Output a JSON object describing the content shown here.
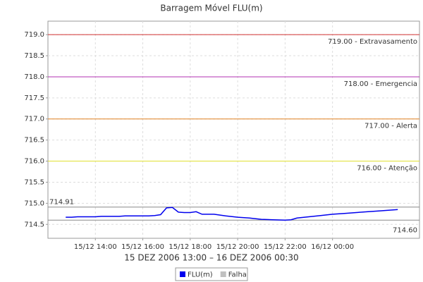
{
  "chart_data": {
    "type": "line",
    "title": "Barragem Móvel FLU(m)",
    "x_label": "15 DEZ 2006 13:00 – 16 DEZ 2006 00:30",
    "x": [
      "2006-12-15T12:45",
      "2006-12-15T13:00",
      "2006-12-15T13:15",
      "2006-12-15T13:30",
      "2006-12-15T13:45",
      "2006-12-15T14:00",
      "2006-12-15T14:15",
      "2006-12-15T14:30",
      "2006-12-15T14:45",
      "2006-12-15T15:00",
      "2006-12-15T15:15",
      "2006-12-15T15:30",
      "2006-12-15T15:45",
      "2006-12-15T16:00",
      "2006-12-15T16:15",
      "2006-12-15T16:30",
      "2006-12-15T16:45",
      "2006-12-15T17:00",
      "2006-12-15T17:15",
      "2006-12-15T17:30",
      "2006-12-15T17:45",
      "2006-12-15T18:00",
      "2006-12-15T18:15",
      "2006-12-15T18:30",
      "2006-12-15T19:00",
      "2006-12-15T19:30",
      "2006-12-15T20:00",
      "2006-12-15T20:30",
      "2006-12-15T21:00",
      "2006-12-15T21:30",
      "2006-12-15T22:00",
      "2006-12-15T22:15",
      "2006-12-15T22:30",
      "2006-12-15T23:00",
      "2006-12-15T23:30",
      "2006-12-16T00:00",
      "2006-12-16T00:30",
      "2006-12-16T01:00",
      "2006-12-16T01:30",
      "2006-12-16T02:00",
      "2006-12-16T02:30",
      "2006-12-16T02:45"
    ],
    "series": [
      {
        "name": "FLU(m)",
        "color": "#0000ee",
        "values": [
          714.67,
          714.67,
          714.68,
          714.68,
          714.68,
          714.68,
          714.69,
          714.69,
          714.69,
          714.69,
          714.7,
          714.7,
          714.7,
          714.7,
          714.7,
          714.71,
          714.73,
          714.89,
          714.9,
          714.79,
          714.78,
          714.78,
          714.8,
          714.74,
          714.74,
          714.7,
          714.67,
          714.65,
          714.62,
          714.61,
          714.6,
          714.61,
          714.65,
          714.68,
          714.71,
          714.74,
          714.76,
          714.78,
          714.8,
          714.82,
          714.84,
          714.85
        ]
      },
      {
        "name": "Falha",
        "color": "#c0c0c0",
        "values": [
          null,
          null,
          null,
          null,
          null,
          null,
          null,
          null,
          null,
          null,
          null,
          null,
          null,
          null,
          null,
          null,
          null,
          null,
          null,
          null,
          null,
          null,
          null,
          null,
          null,
          null,
          null,
          null,
          null,
          null,
          null,
          null,
          null,
          null,
          null,
          null,
          null,
          null,
          null,
          null,
          null,
          null
        ]
      }
    ],
    "xlim": [
      "2006-12-15T12:00",
      "2006-12-16T03:40"
    ],
    "xticks": [
      {
        "value": "2006-12-15T14:00",
        "label": "15/12 14:00"
      },
      {
        "value": "2006-12-15T16:00",
        "label": "15/12 16:00"
      },
      {
        "value": "2006-12-15T18:00",
        "label": "15/12 18:00"
      },
      {
        "value": "2006-12-15T20:00",
        "label": "15/12 20:00"
      },
      {
        "value": "2006-12-15T22:00",
        "label": "15/12 22:00"
      },
      {
        "value": "2006-12-16T00:00",
        "label": "16/12 00:00"
      }
    ],
    "ylim": [
      714.17,
      719.32
    ],
    "yticks": [
      {
        "value": 714.5,
        "label": "714.5"
      },
      {
        "value": 715,
        "label": "715.0"
      },
      {
        "value": 715.5,
        "label": "715.5"
      },
      {
        "value": 716,
        "label": "716.0"
      },
      {
        "value": 716.5,
        "label": "716.5"
      },
      {
        "value": 717,
        "label": "717.0"
      },
      {
        "value": 717.5,
        "label": "717.5"
      },
      {
        "value": 718,
        "label": "718.0"
      },
      {
        "value": 718.5,
        "label": "718.5"
      },
      {
        "value": 719,
        "label": "719.0"
      }
    ],
    "grid": true,
    "thresholds": [
      {
        "value": 719,
        "label": "719.00 - Extravasamento",
        "color": "#d03030"
      },
      {
        "value": 718,
        "label": "718.00 - Emergencia",
        "color": "#b030b0"
      },
      {
        "value": 717,
        "label": "717.00 - Alerta",
        "color": "#e08020"
      },
      {
        "value": 716,
        "label": "716.00 - Atenção",
        "color": "#e0e030"
      }
    ],
    "markers": [
      {
        "value": 714.91,
        "label": "714.91",
        "position": "left"
      },
      {
        "value": 714.6,
        "label": "714.60",
        "position": "right"
      }
    ],
    "legend": "bottom"
  }
}
